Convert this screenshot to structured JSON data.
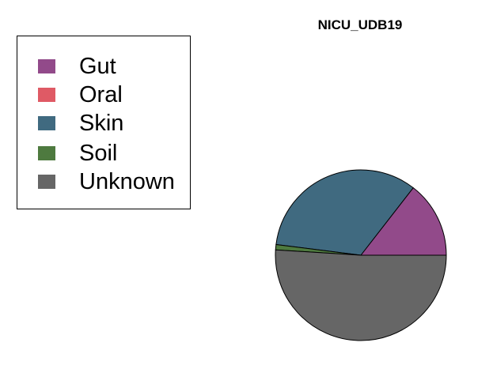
{
  "chart_data": {
    "type": "pie",
    "title": "NICU_UDB19",
    "legend_position": "top-left",
    "slices": [
      {
        "label": "Gut",
        "value": 14.5,
        "color": "#924a8a"
      },
      {
        "label": "Oral",
        "value": 0.0,
        "color": "#df5a65"
      },
      {
        "label": "Skin",
        "value": 33.5,
        "color": "#406a80"
      },
      {
        "label": "Soil",
        "value": 1.0,
        "color": "#4e7a3f"
      },
      {
        "label": "Unknown",
        "value": 51.0,
        "color": "#666666"
      }
    ]
  }
}
